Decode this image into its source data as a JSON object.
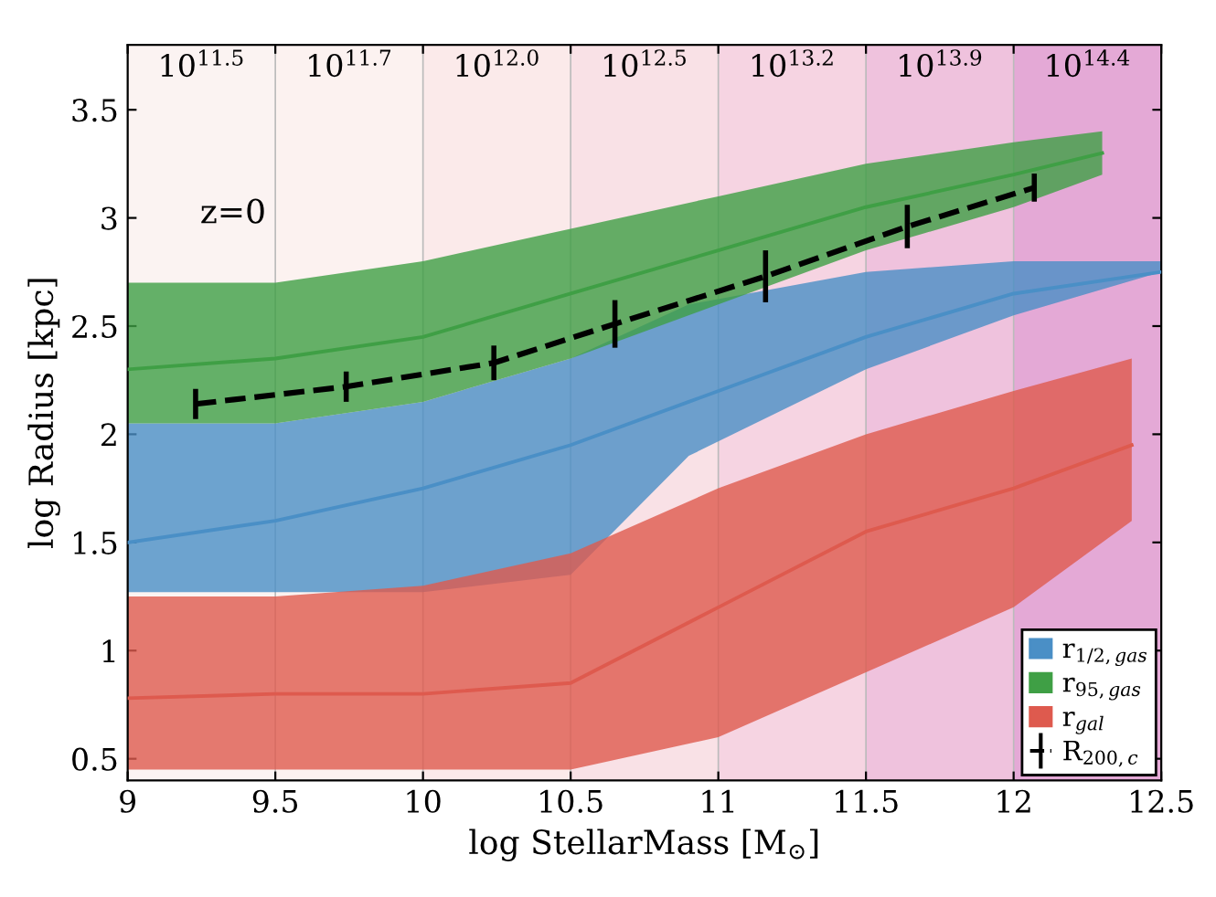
{
  "chart_data": {
    "type": "line",
    "xlabel": "log StellarMass [M$_{⊙}$]",
    "ylabel": "log Radius [kpc]",
    "xlim": [
      9,
      12.5
    ],
    "xticks": [
      9,
      9.5,
      10,
      10.5,
      11,
      11.5,
      12,
      12.5
    ],
    "ylim": [
      0.4,
      3.8
    ],
    "yticks": [
      0.5,
      1,
      1.5,
      2,
      2.5,
      3,
      3.5
    ],
    "grid": "x",
    "legend": "bottom right",
    "annotations": [
      "z=0"
    ],
    "bands": [
      {
        "axis": "x",
        "from": 9,
        "to": 9.5,
        "label": "10$^{11.5}$",
        "color": "#fbf3f2"
      },
      {
        "axis": "x",
        "from": 9.5,
        "to": 10,
        "label": "10$^{11.7}$",
        "color": "#fcf2f0"
      },
      {
        "axis": "x",
        "from": 10,
        "to": 10.5,
        "label": "10$^{12.0}$",
        "color": "#fbeaea"
      },
      {
        "axis": "x",
        "from": 10.5,
        "to": 11,
        "label": "10$^{12.5}$",
        "color": "#f9e1e6"
      },
      {
        "axis": "x",
        "from": 11,
        "to": 11.5,
        "label": "10$^{13.2}$",
        "color": "#f6d4e2"
      },
      {
        "axis": "x",
        "from": 11.5,
        "to": 12,
        "label": "10$^{13.9}$",
        "color": "#efc2dd"
      },
      {
        "axis": "x",
        "from": 12,
        "to": 12.5,
        "label": "10$^{14.4}$",
        "color": "#e4a9d6"
      }
    ],
    "series": [
      {
        "name": "r$_{1/2,gas}$",
        "color": "#4a8fc6",
        "x": [
          9,
          9.5,
          10,
          10.5,
          10.9,
          11.5,
          12,
          12.5
        ],
        "values": [
          1.5,
          1.6,
          1.75,
          1.95,
          2.15,
          2.45,
          2.65,
          2.75
        ],
        "lower": [
          1.27,
          1.27,
          1.27,
          1.35,
          1.9,
          2.3,
          2.55,
          2.75
        ],
        "upper": [
          2.05,
          2.05,
          2.15,
          2.35,
          2.6,
          2.75,
          2.8,
          2.8
        ]
      },
      {
        "name": "r$_{95,gas}$",
        "color": "#3f9f45",
        "x": [
          9,
          9.5,
          10,
          10.5,
          11,
          11.5,
          12,
          12.3
        ],
        "values": [
          2.3,
          2.35,
          2.45,
          2.65,
          2.85,
          3.05,
          3.2,
          3.3
        ],
        "lower": [
          2.05,
          2.05,
          2.15,
          2.35,
          2.6,
          2.85,
          3.05,
          3.2
        ],
        "upper": [
          2.7,
          2.7,
          2.8,
          2.95,
          3.1,
          3.25,
          3.35,
          3.4
        ]
      },
      {
        "name": "r$_{gal}$",
        "color": "#de5a4e",
        "x": [
          9,
          9.5,
          10,
          10.5,
          11,
          11.5,
          12,
          12.4
        ],
        "values": [
          0.78,
          0.8,
          0.8,
          0.85,
          1.2,
          1.55,
          1.75,
          1.95
        ],
        "lower": [
          0.45,
          0.45,
          0.45,
          0.45,
          0.6,
          0.9,
          1.2,
          1.6
        ],
        "upper": [
          1.25,
          1.25,
          1.3,
          1.45,
          1.75,
          2.0,
          2.2,
          2.35
        ]
      },
      {
        "name": "R$_{200,c}$",
        "color": "#000000",
        "line_style": "dashed",
        "x": [
          9.23,
          9.74,
          10.24,
          10.65,
          11.16,
          11.64,
          12.07
        ],
        "values": [
          2.14,
          2.22,
          2.33,
          2.51,
          2.73,
          2.96,
          3.14
        ],
        "errors": [
          0.07,
          0.07,
          0.08,
          0.11,
          0.12,
          0.1,
          0.065
        ]
      }
    ]
  }
}
